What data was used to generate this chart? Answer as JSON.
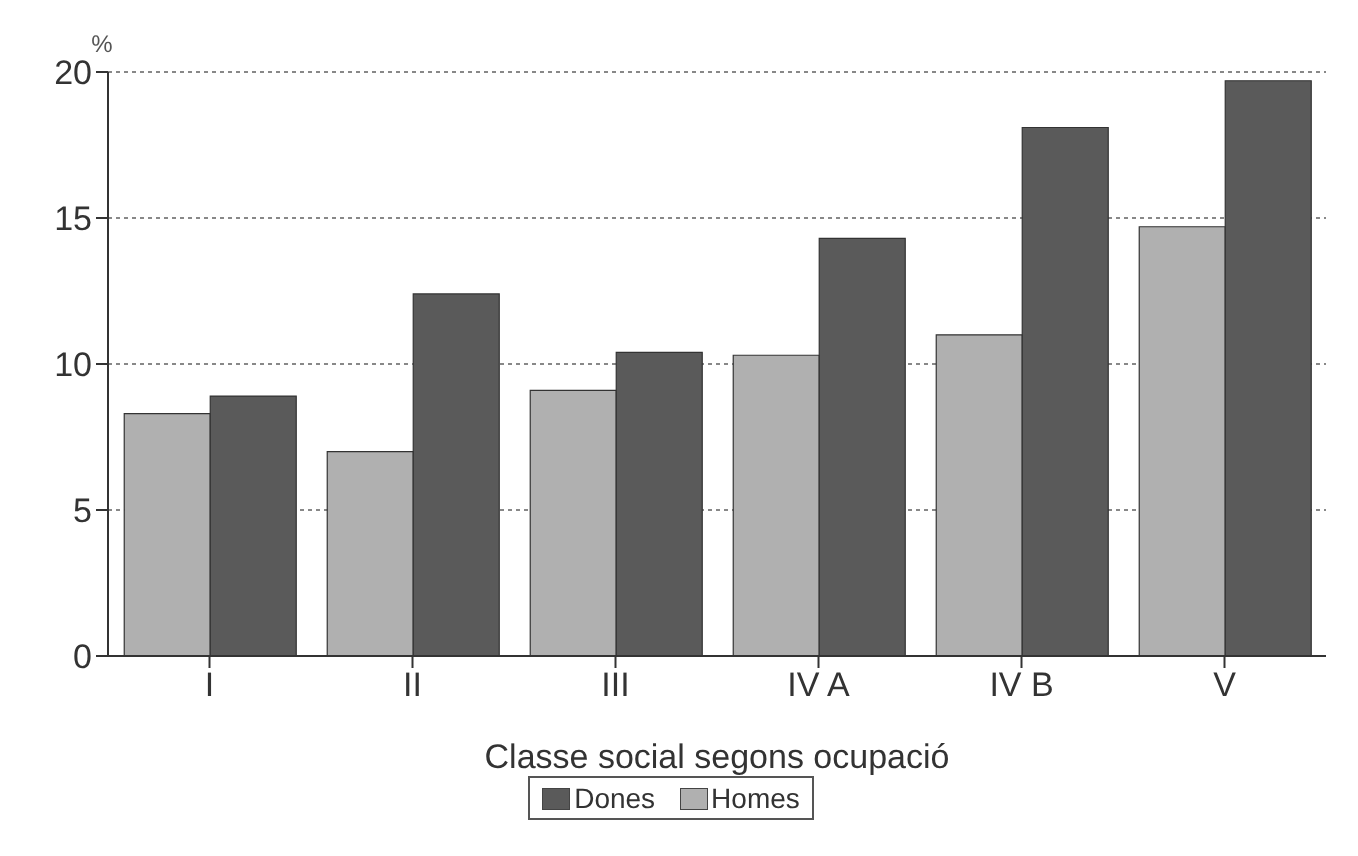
{
  "chart_data": {
    "type": "bar",
    "xlabel": "Classe social segons ocupació",
    "ylabel": "%",
    "categories": [
      "I",
      "II",
      "III",
      "IV A",
      "IV B",
      "V"
    ],
    "series": [
      {
        "name": "Homes",
        "color": "#b0b0b0",
        "values": [
          8.3,
          7.0,
          9.1,
          10.3,
          11.0,
          14.7
        ]
      },
      {
        "name": "Dones",
        "color": "#5a5a5a",
        "values": [
          8.9,
          12.4,
          10.4,
          14.3,
          18.1,
          19.7
        ]
      }
    ],
    "ylim": [
      0,
      20
    ],
    "yticks": [
      0,
      5,
      10,
      15,
      20
    ],
    "grid": "y",
    "legend": "bottom"
  }
}
